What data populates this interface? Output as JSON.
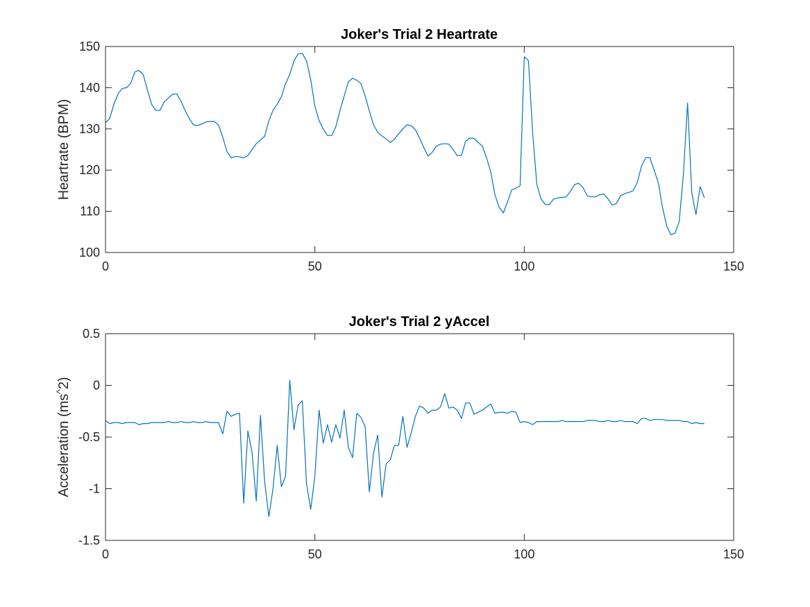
{
  "chart_data": [
    {
      "type": "line",
      "title": "Joker's Trial 2 Heartrate",
      "xlabel": "",
      "ylabel": "Heartrate (BPM)",
      "xlim": [
        0,
        150
      ],
      "ylim": [
        100,
        150
      ],
      "xticks": [
        "0",
        "50",
        "100",
        "150"
      ],
      "yticks": [
        "100",
        "110",
        "120",
        "130",
        "140",
        "150"
      ],
      "grid": false,
      "color": "#0072BD",
      "series": [
        {
          "x": [
            0,
            1,
            2,
            3,
            4,
            5,
            6,
            7,
            8,
            9,
            10,
            11,
            12,
            13,
            14,
            15,
            16,
            17,
            18,
            19,
            20,
            21,
            22,
            23,
            24,
            25,
            26,
            27,
            28,
            29,
            30,
            31,
            32,
            33,
            34,
            35,
            36,
            37,
            38,
            39,
            40,
            41,
            42,
            43,
            44,
            45,
            46,
            47,
            48,
            49,
            50,
            51,
            52,
            53,
            54,
            55,
            56,
            57,
            58,
            59,
            60,
            61,
            62,
            63,
            64,
            65,
            66,
            67,
            68,
            69,
            70,
            71,
            72,
            73,
            74,
            75,
            76,
            77,
            78,
            79,
            80,
            81,
            82,
            83,
            84,
            85,
            86,
            87,
            88,
            89,
            90,
            91,
            92,
            93,
            94,
            95,
            96,
            97,
            98,
            99,
            100,
            101,
            102,
            103,
            104,
            105,
            106,
            107,
            108,
            109,
            110,
            111,
            112,
            113,
            114,
            115,
            116,
            117,
            118,
            119,
            120,
            121,
            122,
            123,
            124,
            125,
            126,
            127,
            128,
            129,
            130,
            131,
            132,
            133,
            134,
            135,
            136,
            137,
            138,
            139,
            140,
            141,
            142,
            143
          ],
          "y": [
            131.5,
            132.5,
            136,
            138.5,
            139.8,
            140,
            141,
            143.8,
            144.2,
            143.2,
            139.5,
            136,
            134.5,
            134.5,
            136.5,
            137.5,
            138.4,
            138.5,
            136.8,
            134.5,
            132.5,
            131,
            130.8,
            131.2,
            131.7,
            131.8,
            131.8,
            130.9,
            128,
            124.5,
            123,
            123.3,
            123.2,
            123,
            123.5,
            125,
            126.4,
            127.3,
            128.2,
            132,
            134.5,
            136,
            137.8,
            141,
            143.2,
            146.5,
            148.2,
            148.3,
            146.5,
            142,
            135.5,
            132,
            130,
            128.4,
            128.4,
            130.5,
            134.5,
            138,
            141.4,
            142.3,
            141.8,
            141,
            138,
            134.4,
            131,
            129.2,
            128.3,
            127.6,
            126.7,
            127.5,
            128.8,
            130,
            131,
            130.8,
            129.8,
            127.8,
            125.5,
            123.4,
            124.3,
            125.8,
            126.3,
            126.4,
            126.3,
            125,
            123.5,
            123.6,
            127,
            127.8,
            127.7,
            126.7,
            125.8,
            123,
            119.5,
            114,
            111,
            109.6,
            112.3,
            115.2,
            115.6,
            116.2,
            147.5,
            146.6,
            129,
            116.5,
            113,
            111.7,
            111.6,
            113,
            113.2,
            113.4,
            113.5,
            114.8,
            116.5,
            116.8,
            115.8,
            113.8,
            113.5,
            113.5,
            114,
            114.2,
            113,
            111.5,
            111.9,
            113.8,
            114.3,
            114.6,
            115,
            117,
            121,
            123,
            123,
            120,
            117,
            111,
            106.5,
            104.3,
            104.7,
            107.5,
            119,
            136.3,
            114.5,
            109.2,
            116,
            113.3
          ]
        }
      ]
    },
    {
      "type": "line",
      "title": "Joker's Trial 2 yAccel",
      "xlabel": "",
      "ylabel": "Acceleration (ms^2)",
      "xlim": [
        0,
        150
      ],
      "ylim": [
        -1.5,
        0.5
      ],
      "xticks": [
        "0",
        "50",
        "100",
        "150"
      ],
      "yticks": [
        "-1.5",
        "-1",
        "-0.5",
        "0",
        "0.5"
      ],
      "grid": false,
      "color": "#0072BD",
      "series": [
        {
          "x": [
            0,
            1,
            2,
            3,
            4,
            5,
            6,
            7,
            8,
            9,
            10,
            11,
            12,
            13,
            14,
            15,
            16,
            17,
            18,
            19,
            20,
            21,
            22,
            23,
            24,
            25,
            26,
            27,
            28,
            29,
            30,
            31,
            32,
            33,
            34,
            35,
            36,
            37,
            38,
            39,
            40,
            41,
            42,
            43,
            44,
            45,
            46,
            47,
            48,
            49,
            50,
            51,
            52,
            53,
            54,
            55,
            56,
            57,
            58,
            59,
            60,
            61,
            62,
            63,
            64,
            65,
            66,
            67,
            68,
            69,
            70,
            71,
            72,
            73,
            74,
            75,
            76,
            77,
            78,
            79,
            80,
            81,
            82,
            83,
            84,
            85,
            86,
            87,
            88,
            89,
            90,
            91,
            92,
            93,
            94,
            95,
            96,
            97,
            98,
            99,
            100,
            101,
            102,
            103,
            104,
            105,
            106,
            107,
            108,
            109,
            110,
            111,
            112,
            113,
            114,
            115,
            116,
            117,
            118,
            119,
            120,
            121,
            122,
            123,
            124,
            125,
            126,
            127,
            128,
            129,
            130,
            131,
            132,
            133,
            134,
            135,
            136,
            137,
            138,
            139,
            140,
            141,
            142,
            143
          ],
          "y": [
            -0.34,
            -0.37,
            -0.36,
            -0.36,
            -0.37,
            -0.36,
            -0.36,
            -0.36,
            -0.38,
            -0.37,
            -0.37,
            -0.36,
            -0.36,
            -0.36,
            -0.36,
            -0.35,
            -0.36,
            -0.36,
            -0.35,
            -0.36,
            -0.36,
            -0.35,
            -0.36,
            -0.36,
            -0.35,
            -0.36,
            -0.36,
            -0.36,
            -0.47,
            -0.25,
            -0.3,
            -0.28,
            -0.27,
            -1.14,
            -0.44,
            -0.65,
            -1.12,
            -0.29,
            -0.93,
            -1.27,
            -1.0,
            -0.58,
            -0.98,
            -0.88,
            0.05,
            -0.43,
            -0.19,
            -0.15,
            -0.95,
            -1.2,
            -0.88,
            -0.24,
            -0.56,
            -0.38,
            -0.55,
            -0.38,
            -0.51,
            -0.24,
            -0.6,
            -0.7,
            -0.27,
            -0.31,
            -0.4,
            -1.03,
            -0.66,
            -0.48,
            -1.08,
            -0.76,
            -0.72,
            -0.58,
            -0.58,
            -0.3,
            -0.6,
            -0.46,
            -0.3,
            -0.2,
            -0.22,
            -0.27,
            -0.24,
            -0.24,
            -0.21,
            -0.08,
            -0.22,
            -0.21,
            -0.24,
            -0.32,
            -0.17,
            -0.17,
            -0.28,
            -0.26,
            -0.24,
            -0.21,
            -0.18,
            -0.27,
            -0.26,
            -0.26,
            -0.27,
            -0.25,
            -0.26,
            -0.36,
            -0.35,
            -0.36,
            -0.38,
            -0.35,
            -0.35,
            -0.35,
            -0.35,
            -0.35,
            -0.35,
            -0.34,
            -0.35,
            -0.35,
            -0.35,
            -0.35,
            -0.35,
            -0.34,
            -0.34,
            -0.34,
            -0.35,
            -0.35,
            -0.34,
            -0.35,
            -0.35,
            -0.34,
            -0.35,
            -0.35,
            -0.35,
            -0.37,
            -0.32,
            -0.32,
            -0.34,
            -0.33,
            -0.33,
            -0.33,
            -0.34,
            -0.34,
            -0.34,
            -0.34,
            -0.35,
            -0.35,
            -0.37,
            -0.36,
            -0.37,
            -0.37
          ]
        }
      ]
    }
  ]
}
